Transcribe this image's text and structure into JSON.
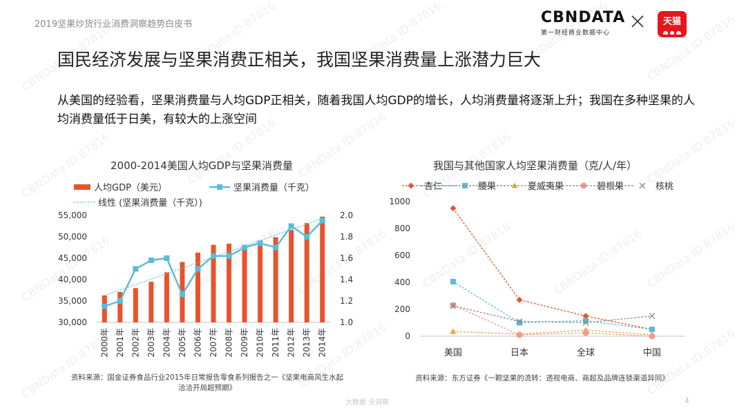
{
  "header": {
    "report_name": "2019坚果炒货行业消费洞察趋势白皮书",
    "brand_main": "CBNDATA",
    "brand_sub": "第一财经商业数据中心",
    "partner_logo": "天猫"
  },
  "title": "国民经济发展与坚果消费正相关，我国坚果消费量上涨潜力巨大",
  "intro": "从美国的经验看，坚果消费量与人均GDP正相关，随着我国人均GDP的增长，人均消费量将逐渐上升；我国在多种坚果的人均消费量低于日美，有较大的上涨空间",
  "watermark": "CBNData ID:87816",
  "colors": {
    "bar": "#e8532b",
    "line": "#5bbcd6",
    "almond": "#e8532b",
    "cashew": "#5bbcd6",
    "macadamia": "#f2a33a",
    "pecan": "#f29b8d",
    "walnut": "#8c8c8c"
  },
  "chart_data": [
    {
      "type": "bar",
      "title": "2000-2014美国人均GDP与坚果消费量",
      "categories": [
        "2000年",
        "2001年",
        "2002年",
        "2003年",
        "2004年",
        "2005年",
        "2006年",
        "2007年",
        "2008年",
        "2009年",
        "2010年",
        "2011年",
        "2012年",
        "2013年",
        "2014年"
      ],
      "series": [
        {
          "name": "人均GDP（美元）",
          "type": "bar",
          "axis": "left",
          "values": [
            36300,
            37100,
            38000,
            39500,
            41700,
            44100,
            46300,
            48100,
            48400,
            47100,
            48500,
            49900,
            51600,
            53200,
            54700
          ]
        },
        {
          "name": "坚果消费量（千克）",
          "type": "line",
          "axis": "right",
          "values": [
            1.15,
            1.2,
            1.5,
            1.58,
            1.6,
            1.26,
            1.5,
            1.62,
            1.62,
            1.7,
            1.74,
            1.7,
            1.9,
            1.8,
            1.95
          ]
        }
      ],
      "trendline": {
        "name": "线性 (坚果消费量（千克）)",
        "start": 1.25,
        "end": 1.97
      },
      "y_left": {
        "min": 30000,
        "max": 55000,
        "ticks": [
          "55,000",
          "50,000",
          "45,000",
          "40,000",
          "35,000",
          "30,000"
        ]
      },
      "y_right": {
        "min": 1.0,
        "max": 2.0,
        "ticks": [
          "2.0",
          "1.8",
          "1.6",
          "1.4",
          "1.2",
          "1.0"
        ]
      },
      "source_line1": "资料来源：国金证券食品行业2015年日常报告零食系列报告之一《坚果电商风生水起",
      "source_line2": "洽洽开局超预期》"
    },
    {
      "type": "line",
      "title": "我国与其他国家人均坚果消费量（克/人/年）",
      "categories": [
        "美国",
        "日本",
        "全球",
        "中国"
      ],
      "series": [
        {
          "name": "杏仁",
          "marker": "diamond",
          "values": [
            950,
            270,
            150,
            50
          ]
        },
        {
          "name": "腰果",
          "marker": "square",
          "values": [
            405,
            100,
            115,
            50
          ]
        },
        {
          "name": "夏威夷果",
          "marker": "triangle",
          "values": [
            35,
            15,
            45,
            10
          ]
        },
        {
          "name": "碧根果",
          "marker": "circle",
          "values": [
            230,
            10,
            25,
            0
          ]
        },
        {
          "name": "核桃",
          "marker": "cross",
          "values": [
            225,
            110,
            100,
            150
          ]
        }
      ],
      "y": {
        "min": 0,
        "max": 1000,
        "ticks": [
          "1000",
          "800",
          "600",
          "400",
          "200",
          "0"
        ]
      },
      "source": "资料来源：东方证券《一颗坚果的流转：透视电商、商超及品牌连锁渠道异同》"
    }
  ],
  "footer": {
    "text": "大数据  全洞察",
    "page": "4"
  }
}
